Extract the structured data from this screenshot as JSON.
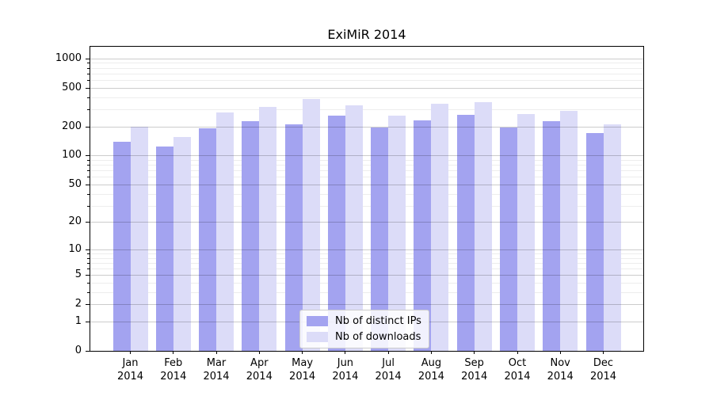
{
  "chart_data": {
    "type": "bar",
    "title": "ExiMiR 2014",
    "categories": [
      "Jan 2014",
      "Feb 2014",
      "Mar 2014",
      "Apr 2014",
      "May 2014",
      "Jun 2014",
      "Jul 2014",
      "Aug 2014",
      "Sep 2014",
      "Oct 2014",
      "Nov 2014",
      "Dec 2014"
    ],
    "series": [
      {
        "name": "Nb of distinct IPs",
        "color": "#a3a3f0",
        "values": [
          140,
          125,
          190,
          225,
          210,
          260,
          195,
          230,
          265,
          195,
          225,
          170
        ]
      },
      {
        "name": "Nb of downloads",
        "color": "#dcdcf8",
        "values": [
          200,
          155,
          280,
          320,
          385,
          330,
          260,
          345,
          355,
          270,
          290,
          210
        ]
      }
    ],
    "xlabel": "",
    "ylabel": "",
    "y_ticks": [
      0,
      1,
      2,
      5,
      10,
      20,
      50,
      100,
      200,
      500,
      1000
    ],
    "y_scale": "log10(value+1)",
    "ylim": [
      0,
      1320
    ],
    "grid": "horizontal, major and minor",
    "legend_position": "inside bottom-center"
  }
}
